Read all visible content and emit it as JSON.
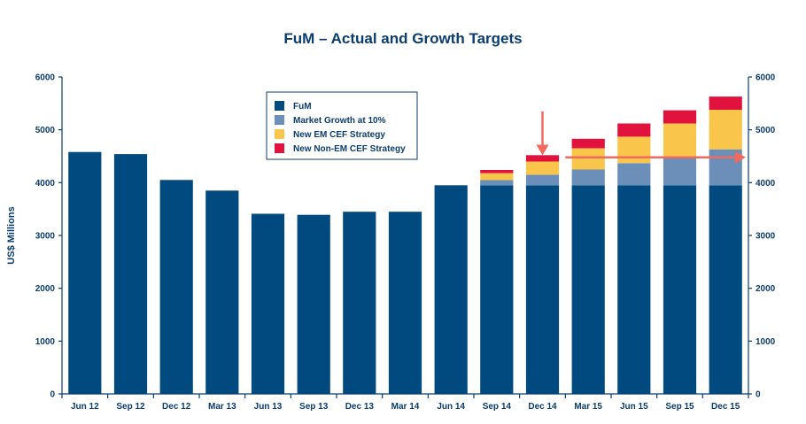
{
  "chart_data": {
    "type": "bar",
    "stacked": true,
    "title": "FuM – Actual and Growth Targets",
    "ylabel": "US$ Millions",
    "xlabel": "",
    "ylim": [
      0,
      6000
    ],
    "yticks": [
      0,
      1000,
      2000,
      3000,
      4000,
      5000,
      6000
    ],
    "secondary_yaxis": true,
    "grid": false,
    "legend_position": "top-center",
    "categories": [
      "Jun 12",
      "Sep 12",
      "Dec 12",
      "Mar 13",
      "Jun 13",
      "Sep 13",
      "Dec 13",
      "Mar 14",
      "Jun 14",
      "Sep 14",
      "Dec 14",
      "Mar 15",
      "Jun 15",
      "Sep 15",
      "Dec 15"
    ],
    "series": [
      {
        "name": "FuM",
        "color": "#004a80",
        "values": [
          4580,
          4540,
          4050,
          3850,
          3410,
          3390,
          3450,
          3450,
          3950,
          3950,
          3950,
          3950,
          3950,
          3950,
          3950
        ]
      },
      {
        "name": "Market Growth at 10%",
        "color": "#6b8fb8",
        "values": [
          0,
          0,
          0,
          0,
          0,
          0,
          0,
          0,
          0,
          100,
          200,
          300,
          420,
          520,
          680
        ]
      },
      {
        "name": "New EM CEF Strategy",
        "color": "#f9c54b",
        "values": [
          0,
          0,
          0,
          0,
          0,
          0,
          0,
          0,
          0,
          130,
          250,
          400,
          500,
          650,
          750
        ]
      },
      {
        "name": "New Non-EM CEF Strategy",
        "color": "#e2123f",
        "values": [
          0,
          0,
          0,
          0,
          0,
          0,
          0,
          0,
          0,
          60,
          120,
          180,
          250,
          250,
          250
        ]
      }
    ],
    "annotations": [
      {
        "type": "arrow-down",
        "color": "#f26a5e",
        "at_category": "Dec 14",
        "from_value": 5350,
        "to_value": 4550
      },
      {
        "type": "arrow-right",
        "color": "#f26a5e",
        "from_category": "Mar 15",
        "to_category": "Dec 15",
        "value": 4480
      }
    ],
    "colors": {
      "axis": "#0b3d6e",
      "arrow": "#f26a5e"
    }
  }
}
